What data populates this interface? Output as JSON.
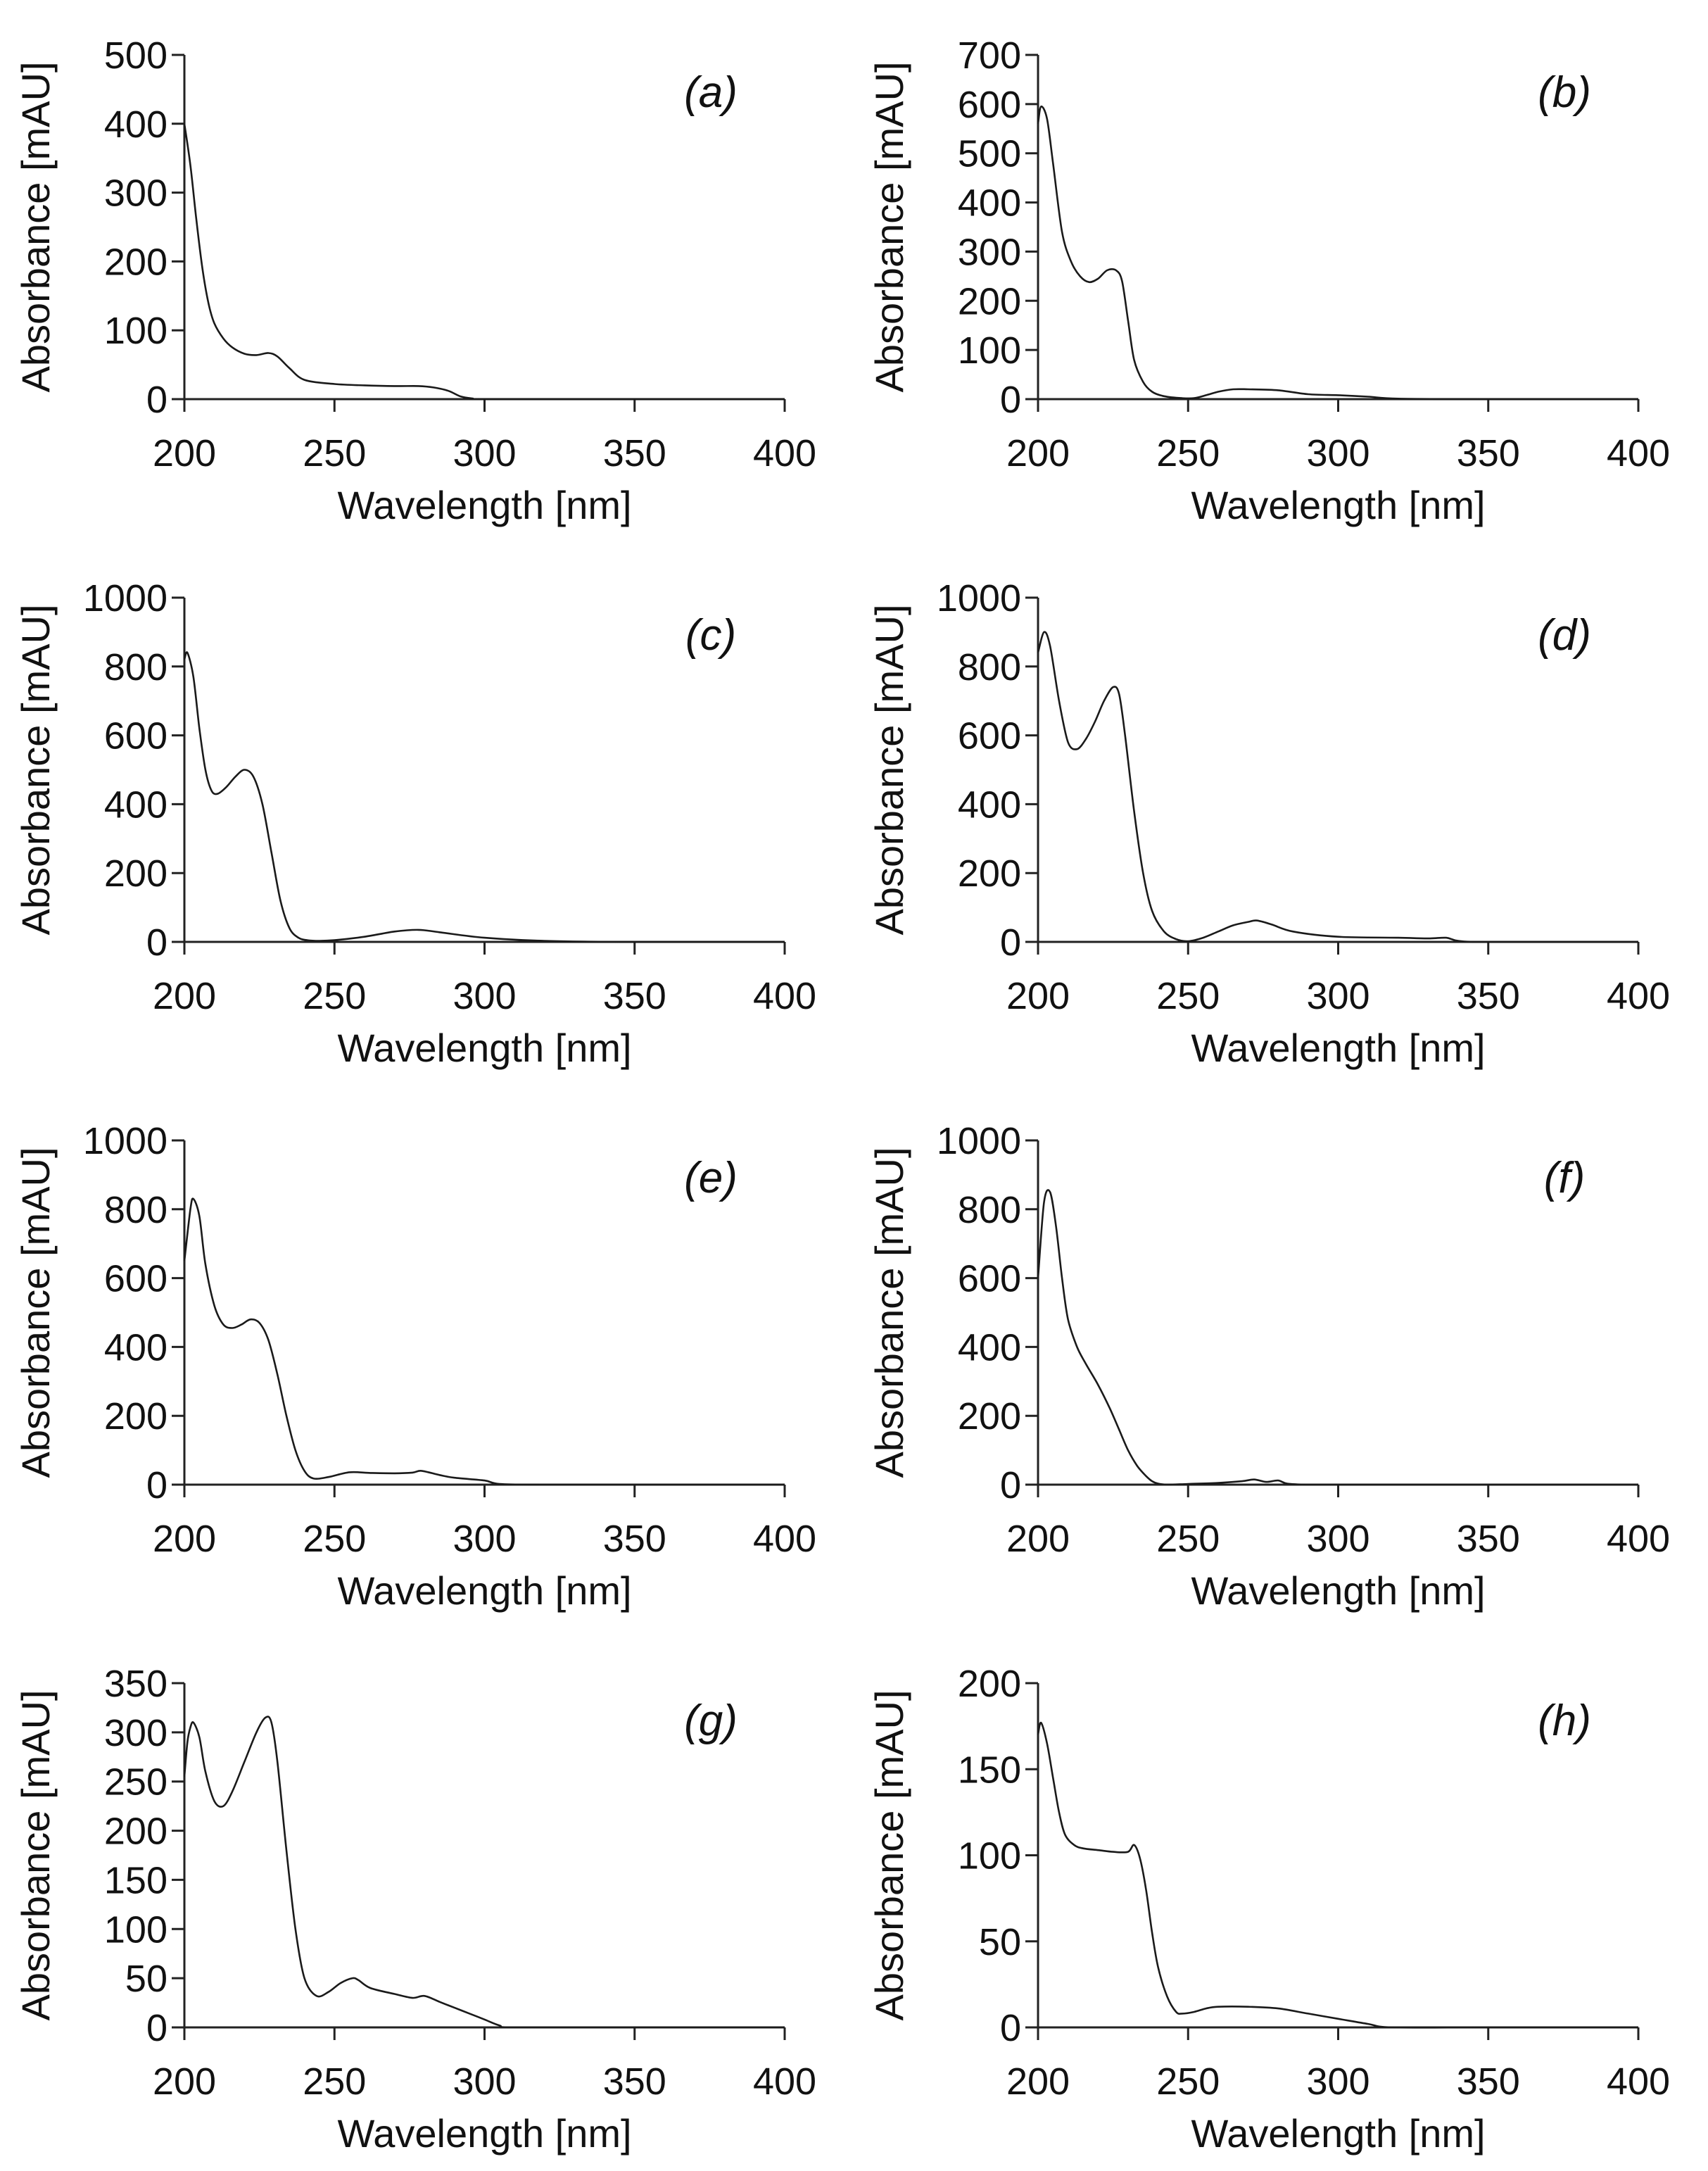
{
  "chart_data": [
    {
      "type": "line",
      "panel_label": "(a)",
      "xlabel": "Wavelength [nm]",
      "ylabel": "Absorbance [mAU]",
      "xlim": [
        200,
        400
      ],
      "ylim": [
        0,
        500
      ],
      "xticks": [
        "200",
        "250",
        "300",
        "350",
        "400"
      ],
      "yticks": [
        "0",
        "100",
        "200",
        "300",
        "400",
        "500"
      ],
      "series": [
        {
          "name": "(a)",
          "x": [
            200,
            202,
            204,
            206,
            208,
            210,
            213,
            216,
            220,
            224,
            228,
            231,
            235,
            240,
            250,
            260,
            270,
            278,
            283,
            288,
            292,
            296,
            300,
            350,
            400
          ],
          "y": [
            400,
            340,
            260,
            190,
            140,
            110,
            88,
            75,
            66,
            64,
            67,
            62,
            45,
            28,
            22,
            20,
            19,
            19,
            17,
            12,
            4,
            1,
            0,
            0,
            0
          ]
        }
      ]
    },
    {
      "type": "line",
      "panel_label": "(b)",
      "xlabel": "Wavelength [nm]",
      "ylabel": "Absorbance [mAU]",
      "xlim": [
        200,
        400
      ],
      "ylim": [
        0,
        700
      ],
      "xticks": [
        "200",
        "250",
        "300",
        "350",
        "400"
      ],
      "yticks": [
        "0",
        "100",
        "200",
        "300",
        "400",
        "500",
        "600",
        "700"
      ],
      "series": [
        {
          "name": "(b)",
          "x": [
            200,
            201,
            203,
            205,
            208,
            211,
            214,
            217,
            220,
            223,
            226,
            228,
            230,
            232,
            235,
            238,
            242,
            248,
            252,
            256,
            260,
            265,
            270,
            280,
            290,
            300,
            310,
            320,
            350,
            400
          ],
          "y": [
            560,
            595,
            570,
            480,
            340,
            280,
            250,
            238,
            245,
            262,
            262,
            240,
            160,
            80,
            35,
            15,
            6,
            2,
            2,
            8,
            15,
            20,
            20,
            18,
            10,
            8,
            5,
            1,
            0,
            0
          ]
        }
      ]
    },
    {
      "type": "line",
      "panel_label": "(c)",
      "xlabel": "Wavelength [nm]",
      "ylabel": "Absorbance [mAU]",
      "xlim": [
        200,
        400
      ],
      "ylim": [
        0,
        1000
      ],
      "xticks": [
        "200",
        "250",
        "300",
        "350",
        "400"
      ],
      "yticks": [
        "0",
        "200",
        "400",
        "600",
        "800",
        "1000"
      ],
      "series": [
        {
          "name": "(c)",
          "x": [
            200,
            201,
            203,
            205,
            207,
            209,
            211,
            214,
            217,
            220,
            223,
            226,
            229,
            232,
            235,
            238,
            241,
            245,
            250,
            260,
            270,
            278,
            285,
            300,
            320,
            350,
            400
          ],
          "y": [
            820,
            840,
            770,
            620,
            500,
            440,
            430,
            450,
            480,
            500,
            480,
            400,
            260,
            120,
            40,
            12,
            5,
            3,
            5,
            15,
            30,
            35,
            28,
            12,
            3,
            0,
            0
          ]
        }
      ]
    },
    {
      "type": "line",
      "panel_label": "(d)",
      "xlabel": "Wavelength [nm]",
      "ylabel": "Absorbance [mAU]",
      "xlim": [
        200,
        400
      ],
      "ylim": [
        0,
        1000
      ],
      "xticks": [
        "200",
        "250",
        "300",
        "350",
        "400"
      ],
      "yticks": [
        "0",
        "200",
        "400",
        "600",
        "800",
        "1000"
      ],
      "series": [
        {
          "name": "(d)",
          "x": [
            200,
            202,
            204,
            207,
            210,
            213,
            216,
            219,
            222,
            225,
            227,
            229,
            232,
            235,
            238,
            242,
            246,
            250,
            255,
            260,
            265,
            270,
            273,
            278,
            285,
            300,
            320,
            330,
            336,
            340,
            350,
            400
          ],
          "y": [
            840,
            900,
            860,
            700,
            580,
            560,
            590,
            640,
            700,
            740,
            720,
            600,
            380,
            200,
            90,
            30,
            8,
            2,
            12,
            30,
            48,
            58,
            62,
            50,
            30,
            15,
            12,
            10,
            12,
            3,
            0,
            0
          ]
        }
      ]
    },
    {
      "type": "line",
      "panel_label": "(e)",
      "xlabel": "Wavelength [nm]",
      "ylabel": "Absorbance [mAU]",
      "xlim": [
        200,
        400
      ],
      "ylim": [
        0,
        1000
      ],
      "xticks": [
        "200",
        "250",
        "300",
        "350",
        "400"
      ],
      "yticks": [
        "0",
        "200",
        "400",
        "600",
        "800",
        "1000"
      ],
      "series": [
        {
          "name": "(e)",
          "x": [
            200,
            202,
            203,
            205,
            207,
            210,
            213,
            216,
            219,
            222,
            225,
            228,
            231,
            234,
            237,
            240,
            243,
            248,
            255,
            262,
            270,
            276,
            279,
            285,
            290,
            300,
            305,
            320,
            350,
            400
          ],
          "y": [
            650,
            800,
            830,
            780,
            640,
            520,
            465,
            455,
            465,
            480,
            470,
            420,
            320,
            200,
            100,
            40,
            18,
            22,
            36,
            34,
            33,
            35,
            40,
            28,
            20,
            12,
            2,
            0,
            0,
            0
          ]
        }
      ]
    },
    {
      "type": "line",
      "panel_label": "(f)",
      "xlabel": "Wavelength [nm]",
      "ylabel": "Absorbance [mAU]",
      "xlim": [
        200,
        400
      ],
      "ylim": [
        0,
        1000
      ],
      "xticks": [
        "200",
        "250",
        "300",
        "350",
        "400"
      ],
      "yticks": [
        "0",
        "200",
        "400",
        "600",
        "800",
        "1000"
      ],
      "series": [
        {
          "name": "(f)",
          "x": [
            200,
            202,
            204,
            206,
            208,
            210,
            213,
            216,
            220,
            224,
            227,
            230,
            233,
            236,
            238,
            240,
            243,
            250,
            260,
            268,
            272,
            276,
            280,
            283,
            290,
            300,
            350,
            400
          ],
          "y": [
            600,
            820,
            850,
            750,
            600,
            480,
            400,
            350,
            290,
            220,
            160,
            100,
            55,
            25,
            10,
            3,
            0,
            2,
            5,
            10,
            15,
            8,
            12,
            3,
            0,
            0,
            0,
            0
          ]
        }
      ]
    },
    {
      "type": "line",
      "panel_label": "(g)",
      "xlabel": "Wavelength [nm]",
      "ylabel": "Absorbance [mAU]",
      "xlim": [
        200,
        400
      ],
      "ylim": [
        0,
        350
      ],
      "xticks": [
        "200",
        "250",
        "300",
        "350",
        "400"
      ],
      "yticks": [
        "0",
        "50",
        "100",
        "150",
        "200",
        "250",
        "300",
        "350"
      ],
      "series": [
        {
          "name": "(g)",
          "x": [
            200,
            201,
            202,
            203,
            205,
            207,
            210,
            213,
            216,
            220,
            224,
            227,
            229,
            231,
            234,
            237,
            240,
            244,
            248,
            252,
            256,
            258,
            262,
            270,
            276,
            280,
            285,
            290,
            295,
            300,
            305,
            310,
            350,
            400
          ],
          "y": [
            255,
            290,
            305,
            310,
            295,
            260,
            230,
            225,
            240,
            270,
            300,
            315,
            310,
            270,
            180,
            100,
            50,
            32,
            36,
            45,
            50,
            48,
            40,
            34,
            30,
            32,
            26,
            20,
            14,
            8,
            2,
            0,
            0,
            0
          ]
        }
      ]
    },
    {
      "type": "line",
      "panel_label": "(h)",
      "xlabel": "Wavelength [nm]",
      "ylabel": "Absorbance [mAU]",
      "xlim": [
        200,
        400
      ],
      "ylim": [
        0,
        200
      ],
      "xticks": [
        "200",
        "250",
        "300",
        "350",
        "400"
      ],
      "yticks": [
        "0",
        "50",
        "100",
        "150",
        "200"
      ],
      "series": [
        {
          "name": "(h)",
          "x": [
            200,
            201,
            203,
            205,
            207,
            209,
            212,
            215,
            220,
            225,
            230,
            232,
            234,
            236,
            238,
            240,
            243,
            246,
            248,
            252,
            256,
            260,
            270,
            280,
            290,
            300,
            310,
            318,
            350,
            400
          ],
          "y": [
            170,
            177,
            165,
            145,
            125,
            112,
            106,
            104,
            103,
            102,
            102,
            106,
            98,
            80,
            55,
            35,
            18,
            9,
            8,
            9,
            11,
            12,
            12,
            11,
            8,
            5,
            2,
            0,
            0,
            0
          ]
        }
      ]
    }
  ]
}
